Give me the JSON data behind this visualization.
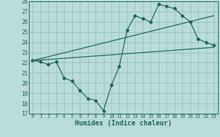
{
  "background_color": "#b8ddd8",
  "grid_color": "#90c0bc",
  "line_color": "#1a6655",
  "xlim": [
    -0.5,
    23.5
  ],
  "ylim": [
    17,
    28
  ],
  "xlabel": "Humidex (Indice chaleur)",
  "xticks": [
    0,
    1,
    2,
    3,
    4,
    5,
    6,
    7,
    8,
    9,
    10,
    11,
    12,
    13,
    14,
    15,
    16,
    17,
    18,
    19,
    20,
    21,
    22,
    23
  ],
  "yticks": [
    17,
    18,
    19,
    20,
    21,
    22,
    23,
    24,
    25,
    26,
    27,
    28
  ],
  "line1_x": [
    0,
    1,
    2,
    3,
    4,
    5,
    6,
    7,
    8,
    9,
    10,
    11,
    12,
    13,
    14,
    15,
    16,
    17,
    18,
    19,
    20,
    21,
    22,
    23
  ],
  "line1_y": [
    22.2,
    22.1,
    21.8,
    22.1,
    20.5,
    20.2,
    19.3,
    18.5,
    18.3,
    17.3,
    19.8,
    21.6,
    25.2,
    26.6,
    26.3,
    26.0,
    27.7,
    27.5,
    27.3,
    26.6,
    26.0,
    24.3,
    24.0,
    23.7
  ],
  "line2_x": [
    0,
    23
  ],
  "line2_y": [
    22.2,
    26.6
  ],
  "line3_x": [
    0,
    23
  ],
  "line3_y": [
    22.2,
    23.5
  ],
  "marker": "D",
  "markersize": 2.2,
  "linewidth": 0.9
}
